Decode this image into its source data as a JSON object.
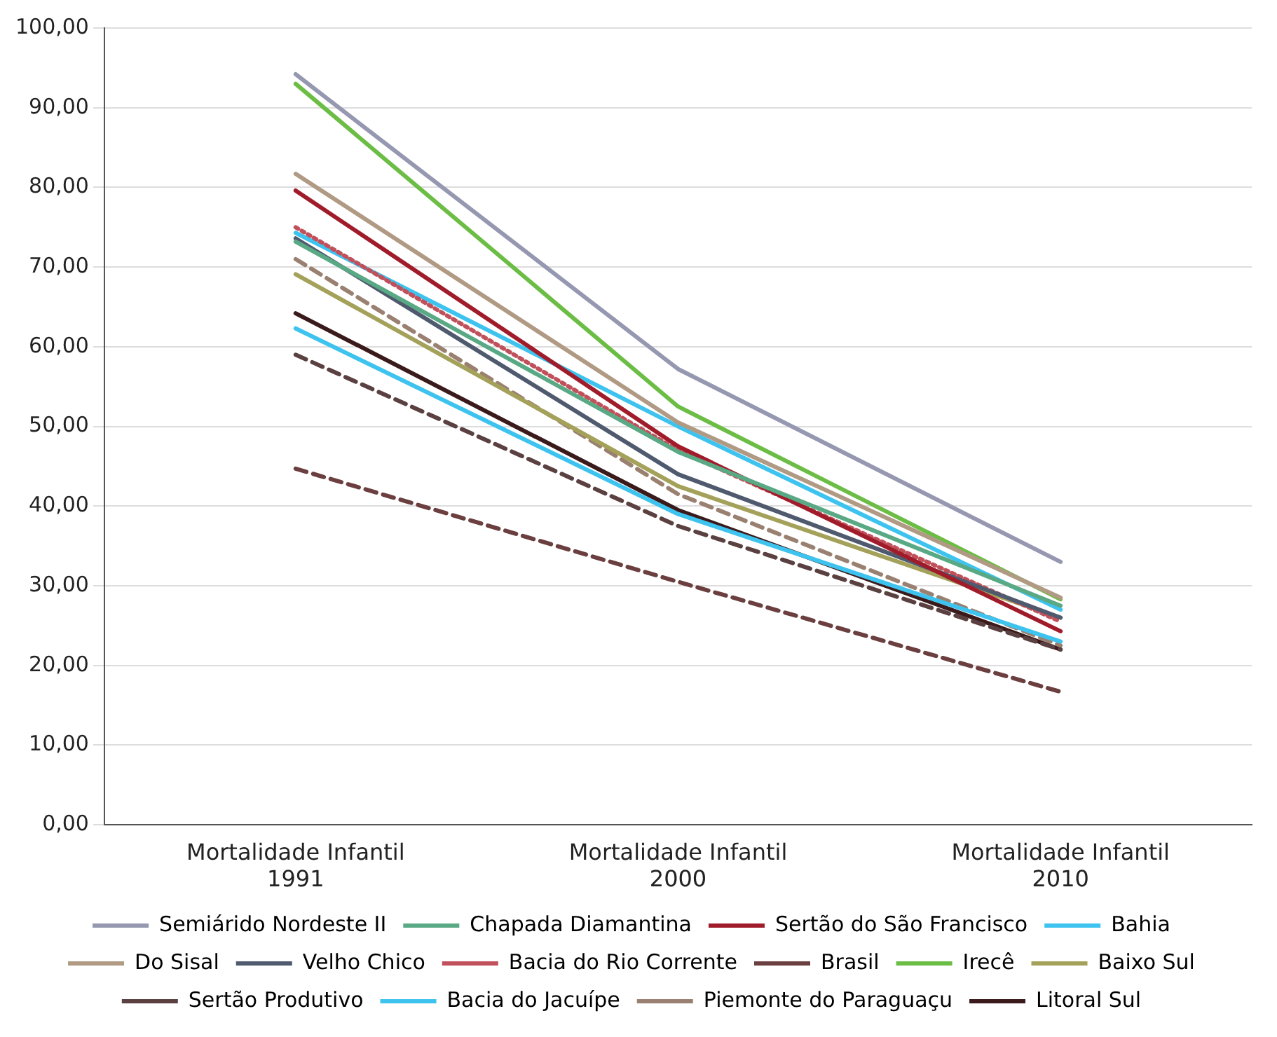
{
  "chart_data": {
    "type": "line",
    "categories": [
      "Mortalidade Infantil\n1991",
      "Mortalidade Infantil\n2000",
      "Mortalidade Infantil\n2010"
    ],
    "ylim": [
      0,
      100
    ],
    "yticks": [
      {
        "value": 0,
        "label": "0,00"
      },
      {
        "value": 10,
        "label": "10,00"
      },
      {
        "value": 20,
        "label": "20,00"
      },
      {
        "value": 30,
        "label": "30,00"
      },
      {
        "value": 40,
        "label": "40,00"
      },
      {
        "value": 50,
        "label": "50,00"
      },
      {
        "value": 60,
        "label": "60,00"
      },
      {
        "value": 70,
        "label": "70,00"
      },
      {
        "value": 80,
        "label": "80,00"
      },
      {
        "value": 90,
        "label": "90,00"
      },
      {
        "value": 100,
        "label": "100,00"
      }
    ],
    "grid": "y",
    "legend": "bottom",
    "marker": "none",
    "series": [
      {
        "name": "Semiárido Nordeste II",
        "color": "#9598b0",
        "values": [
          94.2,
          57.2,
          33
        ]
      },
      {
        "name": "Chapada Diamantina",
        "color": "#5aa985",
        "values": [
          73.2,
          46.8,
          27.5
        ]
      },
      {
        "name": "Sertão do São Francisco",
        "color": "#a01c2a",
        "values": [
          79.6,
          47.5,
          24.3
        ]
      },
      {
        "name": "Bahia",
        "color": "#3ec3ef",
        "values": [
          62.3,
          39,
          23
        ]
      },
      {
        "name": "Do Sisal",
        "color": "#b09a84",
        "values": [
          81.7,
          50.5,
          28.5
        ]
      },
      {
        "name": "Velho Chico",
        "color": "#4f5a6e",
        "values": [
          73.6,
          44,
          26
        ]
      },
      {
        "name": "Bacia do Rio Corrente",
        "color": "#c0505a",
        "line_style": "dotted",
        "values": [
          75,
          47,
          25.5
        ]
      },
      {
        "name": "Brasil",
        "color": "#6b3f3f",
        "line_style": "dashed",
        "values": [
          44.7,
          30.5,
          16.7
        ]
      },
      {
        "name": "Irecê",
        "color": "#6cbd45",
        "values": [
          93,
          52.5,
          28.3
        ]
      },
      {
        "name": "Baixo Sul",
        "color": "#a4a15a",
        "values": [
          69.1,
          42.5,
          26
        ]
      },
      {
        "name": "Sertão Produtivo",
        "color": "#5a4040",
        "line_style": "dashed",
        "values": [
          59,
          37.5,
          22
        ]
      },
      {
        "name": "Bacia do Jacuípe",
        "color": "#3ec3ef",
        "values": [
          74.3,
          50,
          27
        ]
      },
      {
        "name": "Piemonte do Paraguaçu",
        "color": "#9a8070",
        "line_style": "dashed",
        "values": [
          71,
          41.5,
          22.5
        ]
      },
      {
        "name": "Litoral Sul",
        "color": "#3a1a1a",
        "values": [
          64.2,
          39.5,
          22
        ]
      }
    ]
  }
}
